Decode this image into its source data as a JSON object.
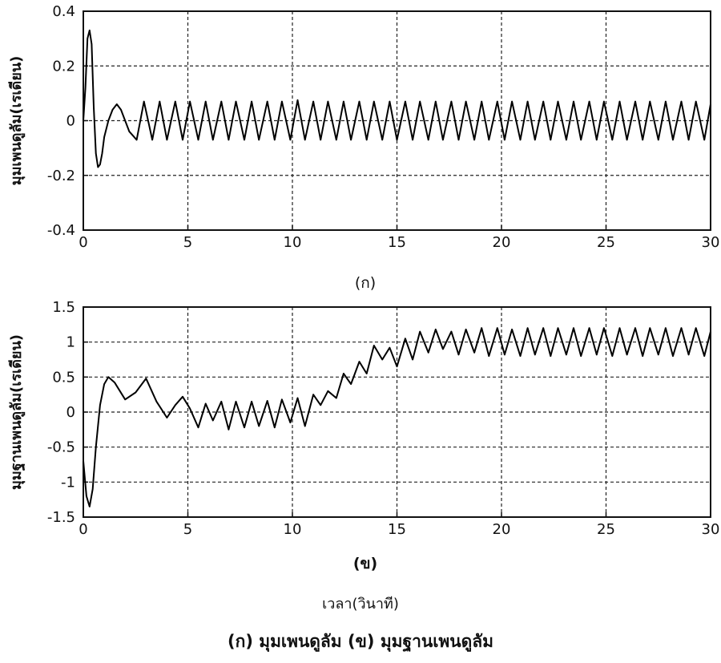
{
  "chart_data": [
    {
      "id": "a",
      "type": "line",
      "xlabel": "(ก)",
      "ylabel": "มุมเพนดูลัม(เรเดียน)",
      "xlim": [
        0,
        30
      ],
      "ylim": [
        -0.4,
        0.4
      ],
      "x_ticks": [
        0,
        5,
        10,
        15,
        20,
        25,
        30
      ],
      "x_tick_labels": [
        "0",
        "5",
        "10",
        "15",
        "20",
        "25",
        "30"
      ],
      "y_ticks": [
        -0.4,
        -0.2,
        0,
        0.2,
        0.4
      ],
      "y_tick_labels": [
        "-0.4",
        "-0.2",
        "0",
        "0.2",
        "0.4"
      ],
      "grid": true,
      "series": [
        {
          "x": [
            0,
            0.1,
            0.2,
            0.3,
            0.4,
            0.5,
            0.6,
            0.7,
            0.8,
            0.9,
            1.0,
            1.2,
            1.4,
            1.6,
            1.8,
            2.0,
            2.2,
            2.55,
            2.9,
            3.3,
            3.65,
            4.0,
            4.4,
            4.75,
            5.1,
            5.5,
            5.85,
            6.2,
            6.6,
            6.95,
            7.3,
            7.7,
            8.05,
            8.4,
            8.8,
            9.15,
            9.5,
            9.9,
            10.25,
            10.6,
            11.0,
            11.35,
            11.7,
            12.1,
            12.45,
            12.8,
            13.2,
            13.55,
            13.9,
            14.3,
            14.65,
            15.0,
            15.4,
            15.75,
            16.1,
            16.5,
            16.85,
            17.2,
            17.6,
            17.95,
            18.3,
            18.7,
            19.05,
            19.4,
            19.8,
            20.15,
            20.5,
            20.9,
            21.25,
            21.6,
            22.0,
            22.35,
            22.7,
            23.1,
            23.45,
            23.8,
            24.2,
            24.55,
            24.9,
            25.3,
            25.65,
            26.0,
            26.4,
            26.75,
            27.1,
            27.5,
            27.85,
            28.2,
            28.6,
            28.95,
            29.3,
            29.7,
            30.0
          ],
          "y": [
            0.0,
            0.12,
            0.3,
            0.33,
            0.28,
            0.05,
            -0.12,
            -0.17,
            -0.16,
            -0.12,
            -0.06,
            0.0,
            0.04,
            0.06,
            0.04,
            0.0,
            -0.04,
            -0.07,
            0.07,
            -0.07,
            0.07,
            -0.07,
            0.07,
            -0.07,
            0.07,
            -0.07,
            0.07,
            -0.07,
            0.07,
            -0.07,
            0.07,
            -0.07,
            0.07,
            -0.07,
            0.07,
            -0.07,
            0.07,
            -0.07,
            0.075,
            -0.07,
            0.07,
            -0.07,
            0.07,
            -0.07,
            0.07,
            -0.07,
            0.07,
            -0.07,
            0.07,
            -0.07,
            0.07,
            -0.07,
            0.07,
            -0.07,
            0.07,
            -0.07,
            0.07,
            -0.07,
            0.07,
            -0.07,
            0.07,
            -0.07,
            0.07,
            -0.07,
            0.07,
            -0.07,
            0.07,
            -0.07,
            0.07,
            -0.07,
            0.07,
            -0.07,
            0.07,
            -0.07,
            0.07,
            -0.07,
            0.07,
            -0.07,
            0.07,
            -0.07,
            0.07,
            -0.07,
            0.07,
            -0.07,
            0.07,
            -0.07,
            0.07,
            -0.07,
            0.07,
            -0.07,
            0.07,
            -0.07,
            0.06
          ]
        }
      ]
    },
    {
      "id": "b",
      "type": "line",
      "xlabel": "(ข)",
      "ylabel": "มุมฐานเพนดูลัม(เรเดียน)",
      "xlim": [
        0,
        30
      ],
      "ylim": [
        -1.5,
        1.5
      ],
      "x_ticks": [
        0,
        5,
        10,
        15,
        20,
        25,
        30
      ],
      "x_tick_labels": [
        "0",
        "5",
        "10",
        "15",
        "20",
        "25",
        "30"
      ],
      "y_ticks": [
        -1.5,
        -1,
        -0.5,
        0,
        0.5,
        1,
        1.5
      ],
      "y_tick_labels": [
        "-1.5",
        "-1",
        "-0.5",
        "0",
        "0.5",
        "1",
        "1.5"
      ],
      "grid": true,
      "series": [
        {
          "x": [
            0,
            0.15,
            0.3,
            0.45,
            0.6,
            0.8,
            1.0,
            1.2,
            1.5,
            2.0,
            2.5,
            3.0,
            3.5,
            4.0,
            4.4,
            4.75,
            5.1,
            5.5,
            5.85,
            6.2,
            6.6,
            6.95,
            7.3,
            7.7,
            8.05,
            8.4,
            8.8,
            9.15,
            9.5,
            9.9,
            10.25,
            10.6,
            11.0,
            11.35,
            11.7,
            12.1,
            12.45,
            12.8,
            13.2,
            13.55,
            13.9,
            14.3,
            14.65,
            15.0,
            15.4,
            15.75,
            16.1,
            16.5,
            16.85,
            17.2,
            17.6,
            17.95,
            18.3,
            18.7,
            19.05,
            19.4,
            19.8,
            20.15,
            20.5,
            20.9,
            21.25,
            21.6,
            22.0,
            22.35,
            22.7,
            23.1,
            23.45,
            23.8,
            24.2,
            24.55,
            24.9,
            25.3,
            25.65,
            26.0,
            26.4,
            26.75,
            27.1,
            27.5,
            27.85,
            28.2,
            28.6,
            28.95,
            29.3,
            29.7,
            30.0
          ],
          "y": [
            -0.7,
            -1.2,
            -1.35,
            -1.1,
            -0.5,
            0.1,
            0.4,
            0.5,
            0.42,
            0.18,
            0.28,
            0.48,
            0.15,
            -0.08,
            0.1,
            0.22,
            0.05,
            -0.22,
            0.12,
            -0.12,
            0.15,
            -0.25,
            0.15,
            -0.22,
            0.15,
            -0.2,
            0.16,
            -0.22,
            0.18,
            -0.15,
            0.2,
            -0.2,
            0.25,
            0.1,
            0.3,
            0.2,
            0.55,
            0.4,
            0.72,
            0.55,
            0.95,
            0.75,
            0.92,
            0.65,
            1.05,
            0.75,
            1.15,
            0.85,
            1.18,
            0.9,
            1.15,
            0.82,
            1.18,
            0.85,
            1.2,
            0.8,
            1.2,
            0.82,
            1.18,
            0.8,
            1.2,
            0.82,
            1.2,
            0.8,
            1.2,
            0.82,
            1.2,
            0.8,
            1.2,
            0.82,
            1.2,
            0.8,
            1.2,
            0.82,
            1.2,
            0.8,
            1.2,
            0.82,
            1.2,
            0.8,
            1.2,
            0.82,
            1.2,
            0.8,
            1.15
          ]
        }
      ]
    }
  ],
  "captions": {
    "shared_xlabel": "เวลา(วินาที)",
    "figure": "(ก) มุมเพนดูลัม   (ข) มุมฐานเพนดูลัม"
  }
}
